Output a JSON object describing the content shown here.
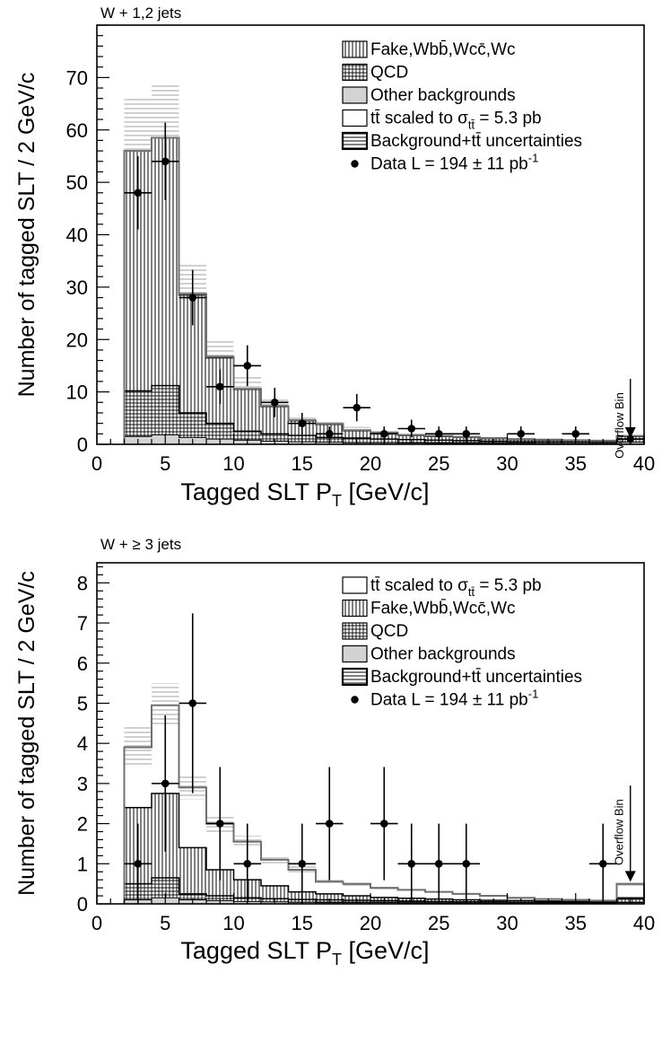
{
  "chart_data": [
    {
      "type": "bar",
      "title": "W + 1,2 jets",
      "xlabel": "Tagged SLT  P",
      "xlabel_sub": "T",
      "xlabel_unit": " [GeV/c]",
      "ylabel": "Number of tagged SLT / 2 GeV/c",
      "xlim": [
        0,
        40
      ],
      "ylim": [
        0,
        80
      ],
      "x_ticks": [
        0,
        5,
        10,
        15,
        20,
        25,
        30,
        35,
        40
      ],
      "y_ticks": [
        0,
        10,
        20,
        30,
        40,
        50,
        60,
        70
      ],
      "annotation": "Overflow Bin",
      "overflow_arrow": {
        "x": 39.0,
        "from": 12.5,
        "to": 1.2
      },
      "legend": [
        {
          "key": "fake",
          "text": "Fake,Wbb̄,Wcc̄,Wc"
        },
        {
          "key": "qcd",
          "text": "QCD"
        },
        {
          "key": "other",
          "text": "Other backgrounds"
        },
        {
          "key": "ttbar",
          "text_main": "tt̄ scaled to σ",
          "text_sub": "tt̄",
          "text_tail": " = 5.3 pb"
        },
        {
          "key": "unc",
          "text": "Background+tt̄ uncertainties"
        },
        {
          "key": "data",
          "text_main": "Data L = 194 ± 11 pb",
          "text_sup": "-1"
        }
      ],
      "bins": [
        2,
        4,
        6,
        8,
        10,
        12,
        14,
        16,
        18,
        20,
        22,
        24,
        26,
        28,
        30,
        32,
        34,
        36,
        38,
        40
      ],
      "stack": {
        "other": [
          1.5,
          1.8,
          1.3,
          1.0,
          0.8,
          0.6,
          0.5,
          0.4,
          0.3,
          0.3,
          0.25,
          0.2,
          0.2,
          0.15,
          0.15,
          0.1,
          0.1,
          0.1,
          0.4
        ],
        "qcd": [
          10.2,
          11.2,
          6.0,
          4.0,
          2.5,
          2.0,
          1.7,
          1.3,
          1.2,
          1.0,
          0.9,
          0.8,
          0.7,
          0.6,
          0.5,
          0.45,
          0.4,
          0.35,
          1.0
        ],
        "fake": [
          56.0,
          58.5,
          28.5,
          16.5,
          10.5,
          7.2,
          4.5,
          3.8,
          2.6,
          2.1,
          1.7,
          1.5,
          1.3,
          1.1,
          0.9,
          0.8,
          0.7,
          0.6,
          1.5
        ],
        "total": [
          56.0,
          58.5,
          28.7,
          16.7,
          10.6,
          7.3,
          4.6,
          3.9,
          2.7,
          2.2,
          1.8,
          1.6,
          1.4,
          1.2,
          1.0,
          0.9,
          0.8,
          0.7,
          1.6
        ],
        "unc": [
          10.5,
          10.0,
          5.5,
          3.5,
          2.2,
          1.5,
          1.0,
          0.8,
          0.6,
          0.5,
          0.4,
          0.35,
          0.3,
          0.25,
          0.2,
          0.2,
          0.15,
          0.15,
          0.3
        ]
      },
      "data_points": [
        {
          "x": 3,
          "y": 48,
          "yerr": 7.0
        },
        {
          "x": 5,
          "y": 54,
          "yerr": 7.4
        },
        {
          "x": 7,
          "y": 28,
          "yerr": 5.3
        },
        {
          "x": 9,
          "y": 11,
          "yerr": 3.3
        },
        {
          "x": 11,
          "y": 15,
          "yerr": 3.9
        },
        {
          "x": 13,
          "y": 8,
          "yerr": 2.8
        },
        {
          "x": 15,
          "y": 4,
          "yerr": 2.0
        },
        {
          "x": 17,
          "y": 2,
          "yerr": 1.4
        },
        {
          "x": 19,
          "y": 7,
          "yerr": 2.6
        },
        {
          "x": 21,
          "y": 2,
          "yerr": 1.4
        },
        {
          "x": 23,
          "y": 3,
          "yerr": 1.7
        },
        {
          "x": 25,
          "y": 2,
          "yerr": 1.4
        },
        {
          "x": 27,
          "y": 2,
          "yerr": 1.4
        },
        {
          "x": 31,
          "y": 2,
          "yerr": 1.4
        },
        {
          "x": 35,
          "y": 2,
          "yerr": 1.4
        },
        {
          "x": 39,
          "y": 1,
          "yerr": 1.0
        }
      ]
    },
    {
      "type": "bar",
      "title": "W + ≥ 3 jets",
      "xlabel": "Tagged SLT P",
      "xlabel_sub": "T",
      "xlabel_unit": " [GeV/c]",
      "ylabel": "Number of tagged SLT / 2 GeV/c",
      "xlim": [
        0,
        40
      ],
      "ylim": [
        0,
        8.5
      ],
      "x_ticks": [
        0,
        5,
        10,
        15,
        20,
        25,
        30,
        35,
        40
      ],
      "y_ticks": [
        0,
        1,
        2,
        3,
        4,
        5,
        6,
        7,
        8
      ],
      "annotation": "Overflow Bin",
      "overflow_arrow": {
        "x": 39.0,
        "from": 2.95,
        "to": 0.55
      },
      "legend": [
        {
          "key": "ttbar",
          "text_main": "tt̄ scaled to σ",
          "text_sub": "tt̄",
          "text_tail": " = 5.3 pb"
        },
        {
          "key": "fake",
          "text": "Fake,Wbb̄,Wcc̄,Wc"
        },
        {
          "key": "qcd",
          "text": "QCD"
        },
        {
          "key": "other",
          "text": "Other backgrounds"
        },
        {
          "key": "unc",
          "text": "Background+tt̄ uncertainties"
        },
        {
          "key": "data",
          "text_main": "Data L = 194 ± 11 pb",
          "text_sup": "-1"
        }
      ],
      "bins": [
        2,
        4,
        6,
        8,
        10,
        12,
        14,
        16,
        18,
        20,
        22,
        24,
        26,
        28,
        30,
        32,
        34,
        36,
        38,
        40
      ],
      "stack": {
        "other": [
          0.1,
          0.15,
          0.1,
          0.08,
          0.06,
          0.05,
          0.04,
          0.03,
          0.03,
          0.03,
          0.02,
          0.02,
          0.02,
          0.02,
          0.02,
          0.01,
          0.01,
          0.01,
          0.03
        ],
        "qcd": [
          0.5,
          0.65,
          0.25,
          0.2,
          0.15,
          0.13,
          0.11,
          0.1,
          0.09,
          0.08,
          0.07,
          0.06,
          0.05,
          0.05,
          0.04,
          0.04,
          0.03,
          0.03,
          0.12
        ],
        "fake": [
          2.4,
          2.75,
          1.4,
          0.85,
          0.6,
          0.45,
          0.3,
          0.25,
          0.2,
          0.16,
          0.14,
          0.12,
          0.1,
          0.09,
          0.08,
          0.07,
          0.06,
          0.06,
          0.15
        ],
        "total": [
          3.9,
          4.95,
          2.9,
          2.0,
          1.55,
          1.1,
          0.85,
          0.55,
          0.5,
          0.4,
          0.35,
          0.3,
          0.25,
          0.2,
          0.15,
          0.12,
          0.1,
          0.08,
          0.5
        ],
        "unc": [
          0.5,
          0.55,
          0.3,
          0.2,
          0.15,
          0.1,
          0.08,
          0.06,
          0.05,
          0.04,
          0.03,
          0.03,
          0.02,
          0.02,
          0.02,
          0.01,
          0.01,
          0.01,
          0.05
        ]
      },
      "data_points": [
        {
          "x": 3,
          "y": 1,
          "yerr": 1.0
        },
        {
          "x": 5,
          "y": 3,
          "yerr": 1.7
        },
        {
          "x": 7,
          "y": 5,
          "yerr": 2.24
        },
        {
          "x": 9,
          "y": 2,
          "yerr": 1.41
        },
        {
          "x": 11,
          "y": 1,
          "yerr": 1.0
        },
        {
          "x": 15,
          "y": 1,
          "yerr": 1.0
        },
        {
          "x": 17,
          "y": 2,
          "yerr": 1.41
        },
        {
          "x": 21,
          "y": 2,
          "yerr": 1.41
        },
        {
          "x": 23,
          "y": 1,
          "yerr": 1.0
        },
        {
          "x": 25,
          "y": 1,
          "yerr": 1.0
        },
        {
          "x": 27,
          "y": 1,
          "yerr": 1.0
        },
        {
          "x": 37,
          "y": 1,
          "yerr": 1.0
        }
      ]
    }
  ],
  "colors": {
    "axis": "#000000",
    "fake_hatch": "#000000",
    "qcd_grid": "#000000",
    "other_fill": "#d3d3d3",
    "unc_hatch": "#a0a0a0",
    "ttbar_line": "#6f6f6f",
    "data": "#000000"
  }
}
